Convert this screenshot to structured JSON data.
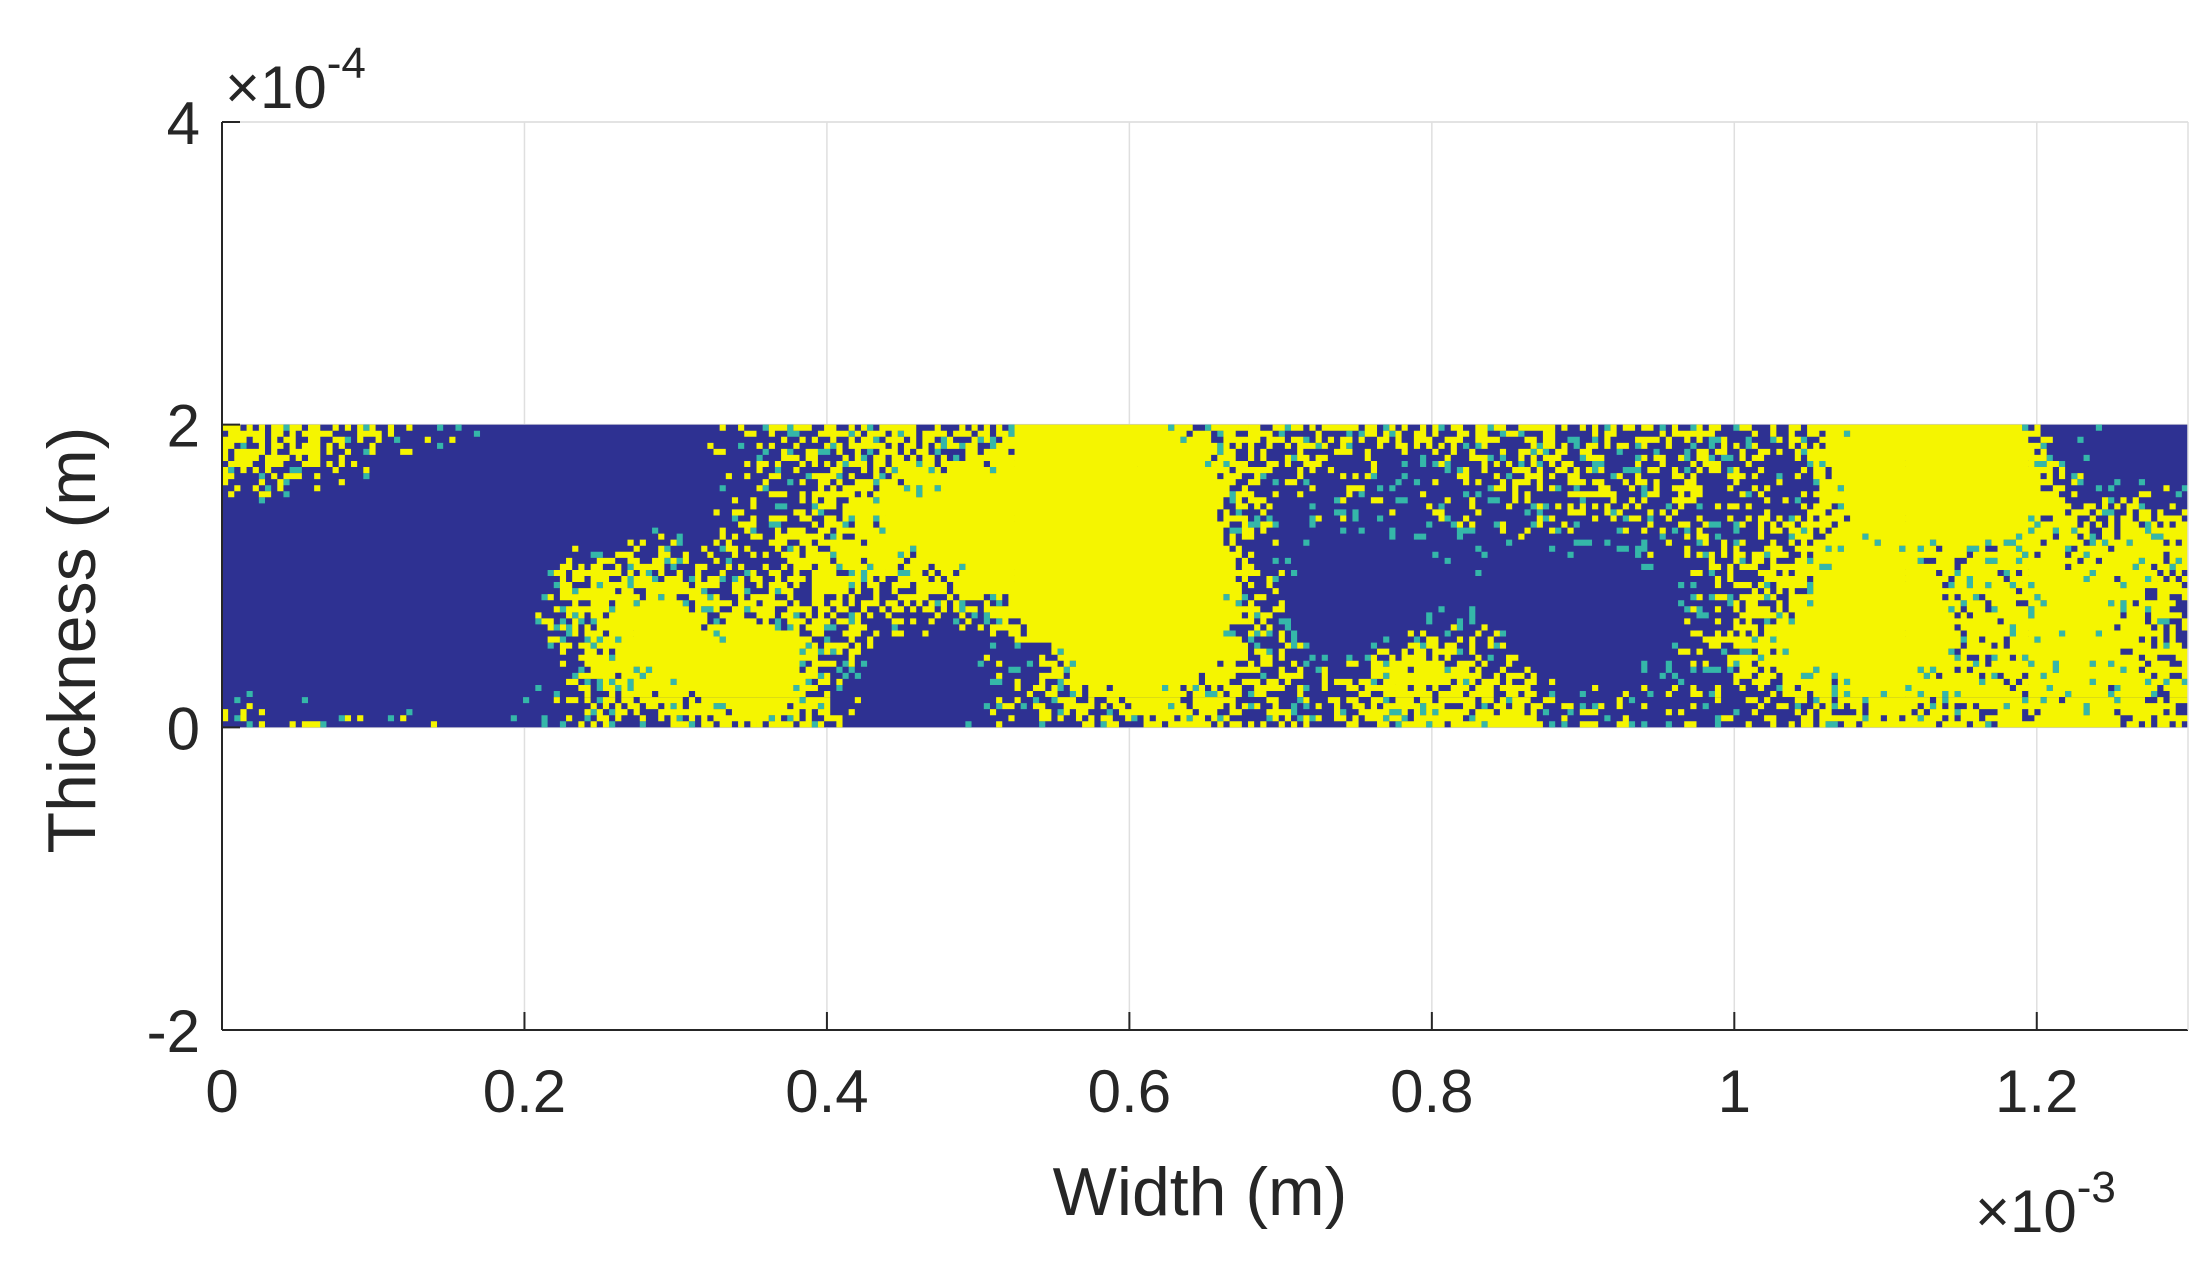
{
  "chart_data": {
    "type": "heatmap",
    "title": "",
    "xlabel": "Width (m)",
    "ylabel": "Thickness (m)",
    "x_ticks": [
      "0",
      "0.2",
      "0.4",
      "0.6",
      "0.8",
      "1",
      "1.2"
    ],
    "y_ticks": [
      "-2",
      "0",
      "2",
      "4"
    ],
    "x_multiplier": {
      "base": "×10",
      "exponent": "-3"
    },
    "y_multiplier": {
      "base": "×10",
      "exponent": "-4"
    },
    "xlim": [
      0,
      0.0013
    ],
    "ylim": [
      -0.0002,
      0.0004
    ],
    "region": {
      "x_range": [
        0,
        0.0013
      ],
      "y_range": [
        0,
        0.0002
      ]
    },
    "phases": [
      {
        "value": 0,
        "color": "#2e3192"
      },
      {
        "value": 1,
        "color": "#f5f500"
      }
    ],
    "boundary_color": "#35b7a9",
    "grid": true
  }
}
